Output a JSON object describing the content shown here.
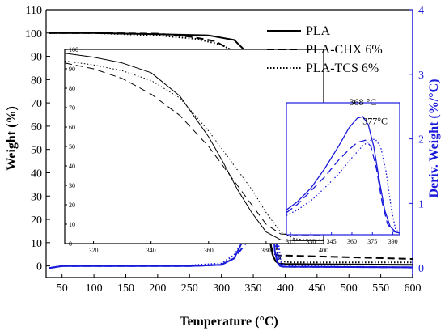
{
  "chart_data": {
    "type": "line",
    "xlabel": "Temperature (°C)",
    "ylabel_left": "Weight (%)",
    "ylabel_right": "Deriv. Weight (%/°C)",
    "xlim": [
      25,
      600
    ],
    "ylim_left": [
      -5,
      110
    ],
    "ylim_right": [
      -0.1484,
      4
    ],
    "xticks": [
      50,
      100,
      150,
      200,
      250,
      300,
      350,
      400,
      450,
      500,
      550,
      600
    ],
    "yticks_left": [
      0,
      10,
      20,
      30,
      40,
      50,
      60,
      70,
      80,
      90,
      100,
      110
    ],
    "yticks_right": [
      0,
      1,
      2,
      3,
      4
    ],
    "legend_position": "top-right",
    "series": [
      {
        "name": "PLA",
        "style": "solid",
        "color": "#000000",
        "x": [
          30,
          100,
          200,
          280,
          320,
          335,
          345,
          352,
          358,
          363,
          368,
          372,
          376,
          380,
          385,
          390,
          400,
          600
        ],
        "y": [
          100,
          100,
          99.5,
          99,
          97,
          93,
          86,
          76,
          64,
          50,
          35,
          22,
          12,
          5,
          2,
          1,
          0.8,
          0.5
        ]
      },
      {
        "name": "PLA-CHX 6%",
        "style": "dashed",
        "color": "#000000",
        "x": [
          30,
          100,
          200,
          250,
          290,
          320,
          335,
          345,
          353,
          360,
          366,
          372,
          378,
          384,
          390,
          400,
          600
        ],
        "y": [
          100,
          100,
          99.7,
          98.5,
          96.5,
          92,
          86,
          78,
          66,
          50,
          34,
          18,
          8,
          5,
          4.5,
          4.5,
          3
        ]
      },
      {
        "name": "PLA-TCS 6%",
        "style": "dotted",
        "color": "#000000",
        "x": [
          30,
          100,
          200,
          260,
          300,
          320,
          335,
          345,
          355,
          363,
          370,
          376,
          382,
          388,
          395,
          410,
          600
        ],
        "y": [
          100,
          100,
          99,
          97.5,
          95,
          92,
          87,
          81,
          72,
          60,
          45,
          30,
          15,
          5,
          2,
          1.5,
          1.5
        ]
      }
    ],
    "derivative_series": [
      {
        "name": "PLA",
        "style": "solid",
        "color": "#1a1adb",
        "x": [
          30,
          50,
          150,
          250,
          300,
          320,
          335,
          345,
          355,
          362,
          368,
          372,
          376,
          380,
          384,
          388,
          392,
          400,
          600
        ],
        "y": [
          0,
          0.03,
          0.03,
          0.03,
          0.05,
          0.15,
          0.45,
          0.95,
          1.75,
          2.5,
          2.93,
          2.6,
          1.8,
          0.8,
          0.25,
          0.08,
          0.03,
          0.02,
          0.01
        ]
      },
      {
        "name": "PLA-CHX 6%",
        "style": "dashed",
        "color": "#1a1adb",
        "x": [
          30,
          50,
          150,
          250,
          300,
          320,
          340,
          355,
          365,
          372,
          377,
          381,
          384,
          387,
          390,
          395,
          600
        ],
        "y": [
          0,
          0.03,
          0.03,
          0.03,
          0.05,
          0.15,
          0.4,
          0.9,
          1.6,
          2.1,
          2.2,
          1.7,
          0.9,
          0.3,
          0.08,
          0.02,
          0.01
        ]
      },
      {
        "name": "PLA-TCS 6%",
        "style": "dotted",
        "color": "#1a1adb",
        "x": [
          30,
          50,
          150,
          250,
          300,
          320,
          340,
          355,
          365,
          372,
          377,
          381,
          385,
          389,
          393,
          400,
          600
        ],
        "y": [
          0,
          0.03,
          0.03,
          0.04,
          0.07,
          0.2,
          0.5,
          1.0,
          1.6,
          2.0,
          2.15,
          1.9,
          1.2,
          0.4,
          0.1,
          0.03,
          0.01
        ]
      }
    ],
    "inset_left": {
      "xlim": [
        310,
        400
      ],
      "ylim": [
        0,
        100
      ],
      "xticks": [
        320,
        340,
        360,
        380,
        400
      ],
      "yticks": [
        0,
        10,
        20,
        30,
        40,
        50,
        60,
        70,
        80,
        90,
        100
      ],
      "series": [
        {
          "name": "PLA",
          "style": "solid",
          "x": [
            310,
            320,
            330,
            340,
            350,
            360,
            365,
            370,
            375,
            380,
            385,
            390,
            395,
            400
          ],
          "y": [
            98,
            96,
            93,
            88,
            76,
            55,
            42,
            28,
            16,
            6,
            2,
            1.5,
            1.5,
            1.5
          ]
        },
        {
          "name": "PLA-CHX 6%",
          "style": "dashed",
          "x": [
            310,
            320,
            330,
            340,
            350,
            360,
            365,
            370,
            375,
            380,
            385,
            390,
            395,
            400
          ],
          "y": [
            93,
            90,
            85,
            77,
            66,
            50,
            40,
            30,
            20,
            10,
            5,
            4.5,
            4.5,
            4.5
          ]
        },
        {
          "name": "PLA-TCS 6%",
          "style": "dotted",
          "x": [
            310,
            320,
            330,
            340,
            350,
            360,
            365,
            370,
            375,
            380,
            385,
            390,
            395,
            400
          ],
          "y": [
            94,
            92,
            89,
            84,
            75,
            58,
            48,
            38,
            28,
            16,
            6,
            2.5,
            2,
            2
          ]
        }
      ]
    },
    "inset_right": {
      "xlim": [
        312,
        395
      ],
      "ylim": [
        0,
        2.4
      ],
      "xticks": [
        315,
        330,
        345,
        360,
        375,
        390
      ],
      "annotations": [
        {
          "text": "368 °C",
          "x": 368,
          "y": 2.3
        },
        {
          "text": "377°C",
          "x": 377,
          "y": 1.95
        }
      ],
      "series": [
        {
          "name": "PLA",
          "style": "solid",
          "x": [
            312,
            320,
            330,
            340,
            350,
            358,
            364,
            368,
            372,
            376,
            380,
            384,
            388,
            392,
            395
          ],
          "y": [
            0.45,
            0.6,
            0.85,
            1.2,
            1.6,
            1.95,
            2.12,
            2.15,
            2.0,
            1.6,
            1.0,
            0.45,
            0.15,
            0.05,
            0.03
          ]
        },
        {
          "name": "PLA-CHX 6%",
          "style": "dashed",
          "x": [
            312,
            320,
            330,
            340,
            350,
            358,
            364,
            370,
            374,
            378,
            382,
            386,
            390,
            395
          ],
          "y": [
            0.4,
            0.55,
            0.8,
            1.05,
            1.35,
            1.55,
            1.68,
            1.72,
            1.6,
            1.2,
            0.6,
            0.2,
            0.06,
            0.03
          ]
        },
        {
          "name": "PLA-TCS 6%",
          "style": "dotted",
          "x": [
            312,
            320,
            330,
            340,
            350,
            360,
            368,
            374,
            377,
            381,
            385,
            389,
            392,
            395
          ],
          "y": [
            0.35,
            0.45,
            0.62,
            0.85,
            1.1,
            1.4,
            1.62,
            1.72,
            1.74,
            1.6,
            1.15,
            0.45,
            0.1,
            0.03
          ]
        }
      ]
    },
    "colors": {
      "left_axis": "#000000",
      "right_axis": "#1a1adb",
      "curves_tga": "#000000",
      "curves_dtg": "#1a1adb"
    }
  }
}
